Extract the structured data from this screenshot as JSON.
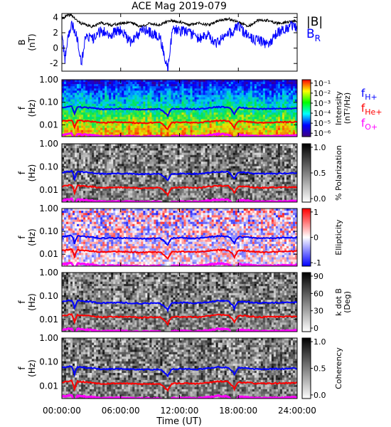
{
  "chart_data": {
    "type": "spectrogram",
    "title": "ACE Mag 2019-079",
    "xlabel": "Time (UT)",
    "x_ticks": [
      "00:00:00",
      "06:00:00",
      "12:00:00",
      "18:00:00",
      "24:00:00"
    ],
    "x_range_hours": [
      0,
      24
    ],
    "panels": [
      {
        "id": "b-field",
        "type": "line",
        "ylabel": "B",
        "yunit": "(nT)",
        "ylim": [
          -3,
          4.5
        ],
        "yticks": [
          "4",
          "2",
          "0",
          "-2"
        ],
        "yticks_values": [
          4,
          2,
          0,
          -2
        ],
        "legend": [
          "|B|",
          "B_R"
        ],
        "series": [
          {
            "name": "|B|",
            "color": "#000000",
            "x": [
              0,
              0.5,
              1.0,
              1.5,
              2.0,
              3.0,
              4.0,
              5.0,
              6.0,
              7.0,
              8.0,
              9.0,
              10.0,
              11.0,
              12.0,
              13.0,
              14.0,
              15.0,
              16.0,
              17.0,
              18.0,
              19.0,
              20.0,
              21.0,
              22.0,
              23.0,
              24.0
            ],
            "values": [
              3.8,
              4.2,
              4.3,
              3.6,
              3.2,
              2.8,
              3.3,
              3.0,
              3.2,
              3.4,
              2.8,
              3.2,
              3.0,
              3.6,
              3.4,
              3.0,
              3.3,
              3.0,
              3.6,
              3.8,
              3.4,
              2.8,
              3.6,
              3.6,
              3.2,
              3.4,
              3.5
            ]
          },
          {
            "name": "B_R",
            "color": "#0000ff",
            "x": [
              0,
              0.3,
              0.6,
              1.0,
              1.3,
              1.6,
              2.0,
              2.5,
              3.0,
              4.0,
              5.0,
              6.0,
              7.0,
              8.0,
              8.5,
              9.0,
              10.0,
              10.8,
              11.3,
              12.0,
              13.0,
              14.0,
              15.0,
              15.5,
              16.0,
              17.0,
              18.0,
              19.0,
              20.0,
              21.0,
              22.0,
              23.0,
              23.6,
              24.0
            ],
            "values": [
              2.0,
              -1.5,
              1.5,
              3.0,
              2.5,
              1.2,
              -1.8,
              2.0,
              1.0,
              2.2,
              1.8,
              2.4,
              0.8,
              2.0,
              2.5,
              2.0,
              1.5,
              -2.8,
              2.5,
              2.2,
              2.0,
              1.2,
              1.8,
              0.5,
              0.8,
              1.8,
              2.8,
              1.5,
              1.0,
              0.5,
              2.0,
              2.5,
              3.0,
              2.5
            ]
          }
        ]
      },
      {
        "id": "intensity",
        "type": "heatmap",
        "ylabel": "f",
        "yunit": "(Hz)",
        "ylim": [
          0.003,
          1.0
        ],
        "yscale": "log",
        "yticks": [
          "1.00",
          "0.10",
          "0.01"
        ],
        "yticks_values": [
          1.0,
          0.1,
          0.01
        ],
        "colorbar": {
          "label": "Intensity",
          "unit": "(nT²/Hz)",
          "ticks": [
            "10⁻¹",
            "10⁻²",
            "10⁻³",
            "10⁻⁴",
            "10⁻⁵",
            "10⁻⁶"
          ],
          "colors": [
            "#ff0000",
            "#ffff00",
            "#00ff00",
            "#00ffff",
            "#0000ff",
            "#400080"
          ]
        }
      },
      {
        "id": "polarization",
        "type": "heatmap",
        "ylabel": "f",
        "yunit": "(Hz)",
        "ylim": [
          0.003,
          1.0
        ],
        "yscale": "log",
        "yticks": [
          "1.00",
          "0.10",
          "0.01"
        ],
        "yticks_values": [
          1.0,
          0.1,
          0.01
        ],
        "colorbar": {
          "label": "% Polarization",
          "unit": "",
          "ticks": [
            "1.0",
            "0.5",
            "0.0"
          ],
          "colors": [
            "#000000",
            "#ffffff"
          ]
        }
      },
      {
        "id": "ellipticity",
        "type": "heatmap",
        "ylabel": "f",
        "yunit": "(Hz)",
        "ylim": [
          0.003,
          1.0
        ],
        "yscale": "log",
        "yticks": [
          "1.00",
          "0.10",
          "0.01"
        ],
        "yticks_values": [
          1.0,
          0.1,
          0.01
        ],
        "colorbar": {
          "label": "Ellipticity",
          "unit": "",
          "ticks": [
            "1",
            "0",
            "-1"
          ],
          "colors": [
            "#ff0000",
            "#ffffff",
            "#0000ff"
          ]
        }
      },
      {
        "id": "kdotb",
        "type": "heatmap",
        "ylabel": "f",
        "yunit": "(Hz)",
        "ylim": [
          0.003,
          1.0
        ],
        "yscale": "log",
        "yticks": [
          "1.00",
          "0.10",
          "0.01"
        ],
        "yticks_values": [
          1.0,
          0.1,
          0.01
        ],
        "colorbar": {
          "label": "k dot B",
          "unit": "(Deg)",
          "ticks": [
            "90",
            "60",
            "30",
            "0"
          ],
          "colors": [
            "#000000",
            "#ffffff"
          ]
        }
      },
      {
        "id": "coherency",
        "type": "heatmap",
        "ylabel": "f",
        "yunit": "(Hz)",
        "ylim": [
          0.003,
          1.0
        ],
        "yscale": "log",
        "yticks": [
          "1.00",
          "0.10",
          "0.01"
        ],
        "yticks_values": [
          1.0,
          0.1,
          0.01
        ],
        "colorbar": {
          "label": "Coherency",
          "unit": "",
          "ticks": [
            "1.0",
            "0.5",
            "0.0"
          ],
          "colors": [
            "#000000",
            "#ffffff"
          ]
        }
      }
    ],
    "gyrofrequency_lines": [
      {
        "name": "f_H+",
        "color": "#0000ff",
        "x": [
          0,
          1,
          1.3,
          1.6,
          2,
          3,
          4,
          6,
          8,
          10,
          10.8,
          11.2,
          12,
          14,
          16,
          17,
          17.6,
          18,
          19,
          20,
          22,
          24
        ],
        "values": [
          0.058,
          0.066,
          0.03,
          0.062,
          0.06,
          0.056,
          0.05,
          0.052,
          0.048,
          0.05,
          0.025,
          0.05,
          0.052,
          0.05,
          0.062,
          0.06,
          0.03,
          0.058,
          0.055,
          0.05,
          0.052,
          0.054
        ]
      },
      {
        "name": "f_He+",
        "color": "#ff0000",
        "x": [
          0,
          1,
          1.3,
          1.6,
          2,
          3,
          4,
          6,
          8,
          10,
          10.8,
          11.2,
          12,
          14,
          16,
          17,
          17.6,
          18,
          19,
          20,
          22,
          24
        ],
        "values": [
          0.0145,
          0.0165,
          0.0075,
          0.0155,
          0.015,
          0.014,
          0.0125,
          0.013,
          0.012,
          0.0125,
          0.0062,
          0.0125,
          0.013,
          0.0125,
          0.0155,
          0.015,
          0.0075,
          0.0145,
          0.0138,
          0.0125,
          0.013,
          0.0135
        ]
      },
      {
        "name": "f_O+",
        "color": "#ff00ff",
        "x": [
          0,
          1,
          1.3,
          1.6,
          2,
          3,
          4,
          6,
          8,
          10,
          10.8,
          11.2,
          12,
          14,
          16,
          17,
          17.6,
          18,
          19,
          20,
          22,
          24
        ],
        "values": [
          0.0036,
          0.0041,
          0.0019,
          0.0039,
          0.0037,
          0.0035,
          0.0031,
          0.0032,
          0.003,
          0.0031,
          0.0016,
          0.0031,
          0.0032,
          0.0031,
          0.0039,
          0.0037,
          0.0019,
          0.0036,
          0.0034,
          0.0031,
          0.0032,
          0.0034
        ]
      }
    ],
    "side_legend": {
      "b_labels": [
        {
          "main": "|B|",
          "sub": "",
          "color": "#000000"
        },
        {
          "main": "B",
          "sub": "R",
          "color": "#0000ff"
        }
      ],
      "f_labels": [
        {
          "main": "f",
          "sub": "H+",
          "color": "#0000ff"
        },
        {
          "main": "f",
          "sub": "He+",
          "color": "#ff0000"
        },
        {
          "main": "f",
          "sub": "O+",
          "color": "#ff00ff"
        }
      ]
    }
  }
}
